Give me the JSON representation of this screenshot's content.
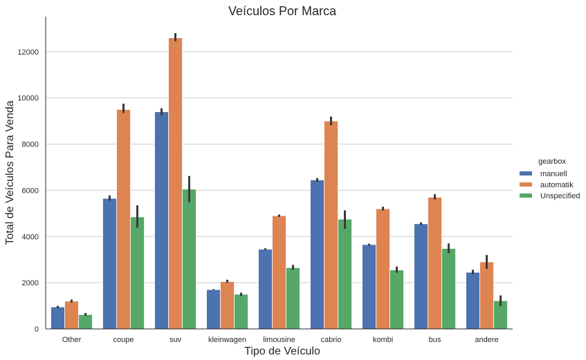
{
  "chart_data": {
    "type": "bar",
    "title": "Veículos Por Marca",
    "xlabel": "Tipo de Veículo",
    "ylabel": "Total de Veículos Para Venda",
    "ylim": [
      0,
      13400
    ],
    "yticks": [
      0,
      2000,
      4000,
      6000,
      8000,
      10000,
      12000
    ],
    "grid": "horizontal",
    "legend_position": "right",
    "legend_title": "gearbox",
    "categories": [
      "Other",
      "coupe",
      "suv",
      "kleinwagen",
      "limousine",
      "cabrio",
      "kombi",
      "bus",
      "andere"
    ],
    "series": [
      {
        "name": "manuell",
        "color": "#4c72b0",
        "values": [
          950,
          5650,
          9400,
          1700,
          3450,
          6450,
          3650,
          4550,
          2450
        ],
        "error_low": [
          900,
          5550,
          9250,
          1680,
          3420,
          6370,
          3610,
          4500,
          2370
        ],
        "error_high": [
          1000,
          5780,
          9550,
          1720,
          3490,
          6530,
          3690,
          4610,
          2560
        ]
      },
      {
        "name": "automatik",
        "color": "#dd8452",
        "values": [
          1200,
          9500,
          12600,
          2050,
          4900,
          9000,
          5200,
          5700,
          2900
        ],
        "error_low": [
          1140,
          9350,
          12450,
          2000,
          4850,
          8820,
          5130,
          5600,
          2600
        ],
        "error_high": [
          1270,
          9750,
          12800,
          2130,
          4950,
          9190,
          5290,
          5830,
          3200
        ]
      },
      {
        "name": "Unspecified",
        "color": "#55a868",
        "values": [
          620,
          4850,
          6050,
          1500,
          2650,
          4750,
          2550,
          3480,
          1220
        ],
        "error_low": [
          570,
          4380,
          5480,
          1420,
          2560,
          4330,
          2430,
          3280,
          990
        ],
        "error_high": [
          690,
          5350,
          6620,
          1570,
          2770,
          5130,
          2700,
          3700,
          1450
        ]
      }
    ]
  }
}
